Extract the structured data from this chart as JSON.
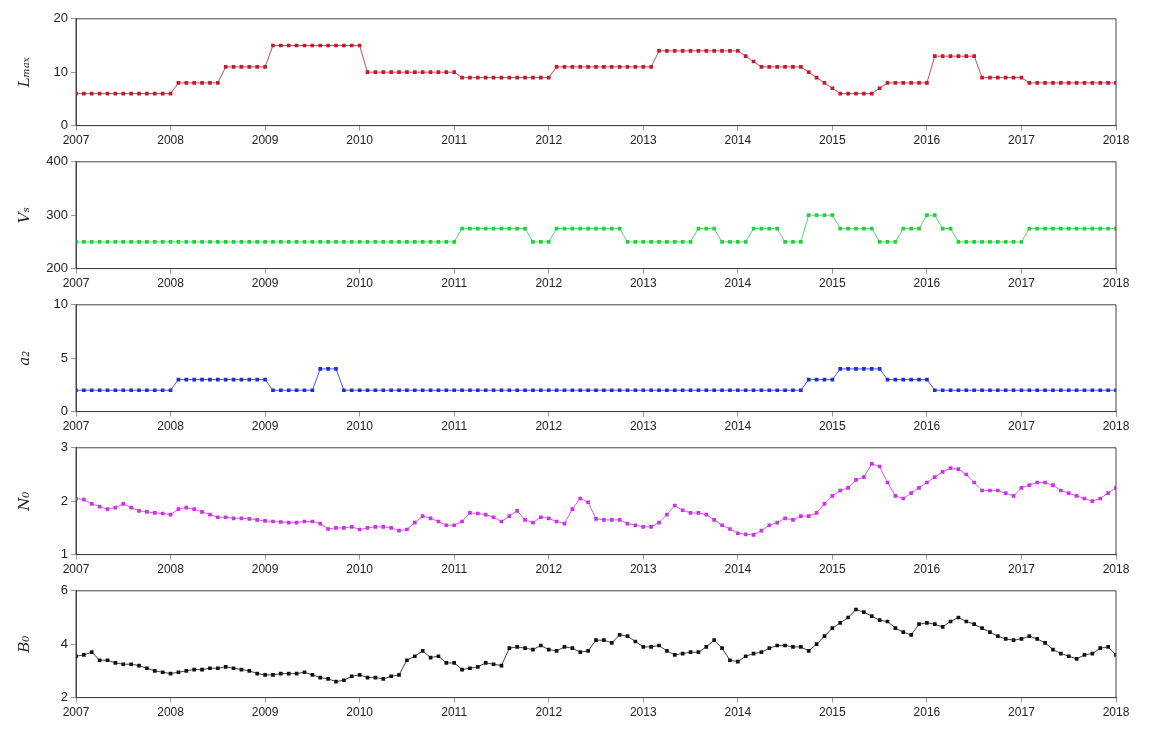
{
  "chart_data": [
    {
      "type": "line",
      "ylabel": "Lₘₐₓ",
      "marker": "square",
      "line_style": "solid",
      "grid": false,
      "xlim": [
        "2007",
        "2018"
      ],
      "xticks": [
        "2007",
        "2008",
        "2009",
        "2010",
        "2011",
        "2012",
        "2013",
        "2014",
        "2015",
        "2016",
        "2017",
        "2018"
      ],
      "ylim": [
        0,
        20
      ],
      "yticks": [
        0,
        10,
        20
      ],
      "x": [
        "2007-01",
        "2007-02",
        "2007-03",
        "2007-04",
        "2007-05",
        "2007-06",
        "2007-07",
        "2007-08",
        "2007-09",
        "2007-10",
        "2007-11",
        "2007-12",
        "2008-01",
        "2008-02",
        "2008-03",
        "2008-04",
        "2008-05",
        "2008-06",
        "2008-07",
        "2008-08",
        "2008-09",
        "2008-10",
        "2008-11",
        "2008-12",
        "2009-01",
        "2009-02",
        "2009-03",
        "2009-04",
        "2009-05",
        "2009-06",
        "2009-07",
        "2009-08",
        "2009-09",
        "2009-10",
        "2009-11",
        "2009-12",
        "2010-01",
        "2010-02",
        "2010-03",
        "2010-04",
        "2010-05",
        "2010-06",
        "2010-07",
        "2010-08",
        "2010-09",
        "2010-10",
        "2010-11",
        "2010-12",
        "2011-01",
        "2011-02",
        "2011-03",
        "2011-04",
        "2011-05",
        "2011-06",
        "2011-07",
        "2011-08",
        "2011-09",
        "2011-10",
        "2011-11",
        "2011-12",
        "2012-01",
        "2012-02",
        "2012-03",
        "2012-04",
        "2012-05",
        "2012-06",
        "2012-07",
        "2012-08",
        "2012-09",
        "2012-10",
        "2012-11",
        "2012-12",
        "2013-01",
        "2013-02",
        "2013-03",
        "2013-04",
        "2013-05",
        "2013-06",
        "2013-07",
        "2013-08",
        "2013-09",
        "2013-10",
        "2013-11",
        "2013-12",
        "2014-01",
        "2014-02",
        "2014-03",
        "2014-04",
        "2014-05",
        "2014-06",
        "2014-07",
        "2014-08",
        "2014-09",
        "2014-10",
        "2014-11",
        "2014-12",
        "2015-01",
        "2015-02",
        "2015-03",
        "2015-04",
        "2015-05",
        "2015-06",
        "2015-07",
        "2015-08",
        "2015-09",
        "2015-10",
        "2015-11",
        "2015-12",
        "2016-01",
        "2016-02",
        "2016-03",
        "2016-04",
        "2016-05",
        "2016-06",
        "2016-07",
        "2016-08",
        "2016-09",
        "2016-10",
        "2016-11",
        "2016-12",
        "2017-01",
        "2017-02",
        "2017-03",
        "2017-04",
        "2017-05",
        "2017-06",
        "2017-07",
        "2017-08",
        "2017-09",
        "2017-10",
        "2017-11",
        "2017-12",
        "2018-01"
      ],
      "series": [
        {
          "color": "#c41a30",
          "values": [
            6,
            6,
            6,
            6,
            6,
            6,
            6,
            6,
            6,
            6,
            6,
            6,
            6,
            8,
            8,
            8,
            8,
            8,
            8,
            11,
            11,
            11,
            11,
            11,
            11,
            15,
            15,
            15,
            15,
            15,
            15,
            15,
            15,
            15,
            15,
            15,
            15,
            10,
            10,
            10,
            10,
            10,
            10,
            10,
            10,
            10,
            10,
            10,
            10,
            9,
            9,
            9,
            9,
            9,
            9,
            9,
            9,
            9,
            9,
            9,
            9,
            11,
            11,
            11,
            11,
            11,
            11,
            11,
            11,
            11,
            11,
            11,
            11,
            11,
            14,
            14,
            14,
            14,
            14,
            14,
            14,
            14,
            14,
            14,
            14,
            13,
            12,
            11,
            11,
            11,
            11,
            11,
            11,
            10,
            9,
            8,
            7,
            6,
            6,
            6,
            6,
            6,
            7,
            8,
            8,
            8,
            8,
            8,
            8,
            13,
            13,
            13,
            13,
            13,
            13,
            9,
            9,
            9,
            9,
            9,
            9,
            8,
            8,
            8,
            8,
            8,
            8,
            8,
            8,
            8,
            8,
            8,
            8
          ]
        }
      ]
    },
    {
      "type": "line",
      "ylabel": "Vₛ",
      "marker": "square",
      "line_style": "solid",
      "grid": false,
      "xlim": [
        "2007",
        "2018"
      ],
      "xticks": [
        "2007",
        "2008",
        "2009",
        "2010",
        "2011",
        "2012",
        "2013",
        "2014",
        "2015",
        "2016",
        "2017",
        "2018"
      ],
      "ylim": [
        200,
        400
      ],
      "yticks": [
        200,
        300,
        400
      ],
      "x": [
        "2007-01",
        "2007-02",
        "2007-03",
        "2007-04",
        "2007-05",
        "2007-06",
        "2007-07",
        "2007-08",
        "2007-09",
        "2007-10",
        "2007-11",
        "2007-12",
        "2008-01",
        "2008-02",
        "2008-03",
        "2008-04",
        "2008-05",
        "2008-06",
        "2008-07",
        "2008-08",
        "2008-09",
        "2008-10",
        "2008-11",
        "2008-12",
        "2009-01",
        "2009-02",
        "2009-03",
        "2009-04",
        "2009-05",
        "2009-06",
        "2009-07",
        "2009-08",
        "2009-09",
        "2009-10",
        "2009-11",
        "2009-12",
        "2010-01",
        "2010-02",
        "2010-03",
        "2010-04",
        "2010-05",
        "2010-06",
        "2010-07",
        "2010-08",
        "2010-09",
        "2010-10",
        "2010-11",
        "2010-12",
        "2011-01",
        "2011-02",
        "2011-03",
        "2011-04",
        "2011-05",
        "2011-06",
        "2011-07",
        "2011-08",
        "2011-09",
        "2011-10",
        "2011-11",
        "2011-12",
        "2012-01",
        "2012-02",
        "2012-03",
        "2012-04",
        "2012-05",
        "2012-06",
        "2012-07",
        "2012-08",
        "2012-09",
        "2012-10",
        "2012-11",
        "2012-12",
        "2013-01",
        "2013-02",
        "2013-03",
        "2013-04",
        "2013-05",
        "2013-06",
        "2013-07",
        "2013-08",
        "2013-09",
        "2013-10",
        "2013-11",
        "2013-12",
        "2014-01",
        "2014-02",
        "2014-03",
        "2014-04",
        "2014-05",
        "2014-06",
        "2014-07",
        "2014-08",
        "2014-09",
        "2014-10",
        "2014-11",
        "2014-12",
        "2015-01",
        "2015-02",
        "2015-03",
        "2015-04",
        "2015-05",
        "2015-06",
        "2015-07",
        "2015-08",
        "2015-09",
        "2015-10",
        "2015-11",
        "2015-12",
        "2016-01",
        "2016-02",
        "2016-03",
        "2016-04",
        "2016-05",
        "2016-06",
        "2016-07",
        "2016-08",
        "2016-09",
        "2016-10",
        "2016-11",
        "2016-12",
        "2017-01",
        "2017-02",
        "2017-03",
        "2017-04",
        "2017-05",
        "2017-06",
        "2017-07",
        "2017-08",
        "2017-09",
        "2017-10",
        "2017-11",
        "2017-12",
        "2018-01"
      ],
      "series": [
        {
          "color": "#22d040",
          "values": [
            250,
            250,
            250,
            250,
            250,
            250,
            250,
            250,
            250,
            250,
            250,
            250,
            250,
            250,
            250,
            250,
            250,
            250,
            250,
            250,
            250,
            250,
            250,
            250,
            250,
            250,
            250,
            250,
            250,
            250,
            250,
            250,
            250,
            250,
            250,
            250,
            250,
            250,
            250,
            250,
            250,
            250,
            250,
            250,
            250,
            250,
            250,
            250,
            250,
            275,
            275,
            275,
            275,
            275,
            275,
            275,
            275,
            275,
            250,
            250,
            250,
            275,
            275,
            275,
            275,
            275,
            275,
            275,
            275,
            275,
            250,
            250,
            250,
            250,
            250,
            250,
            250,
            250,
            250,
            275,
            275,
            275,
            250,
            250,
            250,
            250,
            275,
            275,
            275,
            275,
            250,
            250,
            250,
            300,
            300,
            300,
            300,
            275,
            275,
            275,
            275,
            275,
            250,
            250,
            250,
            275,
            275,
            275,
            300,
            300,
            275,
            275,
            250,
            250,
            250,
            250,
            250,
            250,
            250,
            250,
            250,
            275,
            275,
            275,
            275,
            275,
            275,
            275,
            275,
            275,
            275,
            275,
            275
          ]
        }
      ]
    },
    {
      "type": "line",
      "ylabel": "a₂",
      "marker": "square",
      "line_style": "solid",
      "grid": false,
      "xlim": [
        "2007",
        "2018"
      ],
      "xticks": [
        "2007",
        "2008",
        "2009",
        "2010",
        "2011",
        "2012",
        "2013",
        "2014",
        "2015",
        "2016",
        "2017",
        "2018"
      ],
      "ylim": [
        0,
        10
      ],
      "yticks": [
        0,
        5,
        10
      ],
      "x": [
        "2007-01",
        "2007-02",
        "2007-03",
        "2007-04",
        "2007-05",
        "2007-06",
        "2007-07",
        "2007-08",
        "2007-09",
        "2007-10",
        "2007-11",
        "2007-12",
        "2008-01",
        "2008-02",
        "2008-03",
        "2008-04",
        "2008-05",
        "2008-06",
        "2008-07",
        "2008-08",
        "2008-09",
        "2008-10",
        "2008-11",
        "2008-12",
        "2009-01",
        "2009-02",
        "2009-03",
        "2009-04",
        "2009-05",
        "2009-06",
        "2009-07",
        "2009-08",
        "2009-09",
        "2009-10",
        "2009-11",
        "2009-12",
        "2010-01",
        "2010-02",
        "2010-03",
        "2010-04",
        "2010-05",
        "2010-06",
        "2010-07",
        "2010-08",
        "2010-09",
        "2010-10",
        "2010-11",
        "2010-12",
        "2011-01",
        "2011-02",
        "2011-03",
        "2011-04",
        "2011-05",
        "2011-06",
        "2011-07",
        "2011-08",
        "2011-09",
        "2011-10",
        "2011-11",
        "2011-12",
        "2012-01",
        "2012-02",
        "2012-03",
        "2012-04",
        "2012-05",
        "2012-06",
        "2012-07",
        "2012-08",
        "2012-09",
        "2012-10",
        "2012-11",
        "2012-12",
        "2013-01",
        "2013-02",
        "2013-03",
        "2013-04",
        "2013-05",
        "2013-06",
        "2013-07",
        "2013-08",
        "2013-09",
        "2013-10",
        "2013-11",
        "2013-12",
        "2014-01",
        "2014-02",
        "2014-03",
        "2014-04",
        "2014-05",
        "2014-06",
        "2014-07",
        "2014-08",
        "2014-09",
        "2014-10",
        "2014-11",
        "2014-12",
        "2015-01",
        "2015-02",
        "2015-03",
        "2015-04",
        "2015-05",
        "2015-06",
        "2015-07",
        "2015-08",
        "2015-09",
        "2015-10",
        "2015-11",
        "2015-12",
        "2016-01",
        "2016-02",
        "2016-03",
        "2016-04",
        "2016-05",
        "2016-06",
        "2016-07",
        "2016-08",
        "2016-09",
        "2016-10",
        "2016-11",
        "2016-12",
        "2017-01",
        "2017-02",
        "2017-03",
        "2017-04",
        "2017-05",
        "2017-06",
        "2017-07",
        "2017-08",
        "2017-09",
        "2017-10",
        "2017-11",
        "2017-12",
        "2018-01"
      ],
      "series": [
        {
          "color": "#1a2ee0",
          "values": [
            2,
            2,
            2,
            2,
            2,
            2,
            2,
            2,
            2,
            2,
            2,
            2,
            2,
            3,
            3,
            3,
            3,
            3,
            3,
            3,
            3,
            3,
            3,
            3,
            3,
            2,
            2,
            2,
            2,
            2,
            2,
            4,
            4,
            4,
            2,
            2,
            2,
            2,
            2,
            2,
            2,
            2,
            2,
            2,
            2,
            2,
            2,
            2,
            2,
            2,
            2,
            2,
            2,
            2,
            2,
            2,
            2,
            2,
            2,
            2,
            2,
            2,
            2,
            2,
            2,
            2,
            2,
            2,
            2,
            2,
            2,
            2,
            2,
            2,
            2,
            2,
            2,
            2,
            2,
            2,
            2,
            2,
            2,
            2,
            2,
            2,
            2,
            2,
            2,
            2,
            2,
            2,
            2,
            3,
            3,
            3,
            3,
            4,
            4,
            4,
            4,
            4,
            4,
            3,
            3,
            3,
            3,
            3,
            3,
            2,
            2,
            2,
            2,
            2,
            2,
            2,
            2,
            2,
            2,
            2,
            2,
            2,
            2,
            2,
            2,
            2,
            2,
            2,
            2,
            2,
            2,
            2,
            2
          ]
        }
      ]
    },
    {
      "type": "line",
      "ylabel": "N₀",
      "marker": "square",
      "line_style": "solid",
      "grid": false,
      "xlim": [
        "2007",
        "2018"
      ],
      "xticks": [
        "2007",
        "2008",
        "2009",
        "2010",
        "2011",
        "2012",
        "2013",
        "2014",
        "2015",
        "2016",
        "2017",
        "2018"
      ],
      "ylim": [
        1,
        3
      ],
      "yticks": [
        1,
        2,
        3
      ],
      "x": [
        "2007-01",
        "2007-02",
        "2007-03",
        "2007-04",
        "2007-05",
        "2007-06",
        "2007-07",
        "2007-08",
        "2007-09",
        "2007-10",
        "2007-11",
        "2007-12",
        "2008-01",
        "2008-02",
        "2008-03",
        "2008-04",
        "2008-05",
        "2008-06",
        "2008-07",
        "2008-08",
        "2008-09",
        "2008-10",
        "2008-11",
        "2008-12",
        "2009-01",
        "2009-02",
        "2009-03",
        "2009-04",
        "2009-05",
        "2009-06",
        "2009-07",
        "2009-08",
        "2009-09",
        "2009-10",
        "2009-11",
        "2009-12",
        "2010-01",
        "2010-02",
        "2010-03",
        "2010-04",
        "2010-05",
        "2010-06",
        "2010-07",
        "2010-08",
        "2010-09",
        "2010-10",
        "2010-11",
        "2010-12",
        "2011-01",
        "2011-02",
        "2011-03",
        "2011-04",
        "2011-05",
        "2011-06",
        "2011-07",
        "2011-08",
        "2011-09",
        "2011-10",
        "2011-11",
        "2011-12",
        "2012-01",
        "2012-02",
        "2012-03",
        "2012-04",
        "2012-05",
        "2012-06",
        "2012-07",
        "2012-08",
        "2012-09",
        "2012-10",
        "2012-11",
        "2012-12",
        "2013-01",
        "2013-02",
        "2013-03",
        "2013-04",
        "2013-05",
        "2013-06",
        "2013-07",
        "2013-08",
        "2013-09",
        "2013-10",
        "2013-11",
        "2013-12",
        "2014-01",
        "2014-02",
        "2014-03",
        "2014-04",
        "2014-05",
        "2014-06",
        "2014-07",
        "2014-08",
        "2014-09",
        "2014-10",
        "2014-11",
        "2014-12",
        "2015-01",
        "2015-02",
        "2015-03",
        "2015-04",
        "2015-05",
        "2015-06",
        "2015-07",
        "2015-08",
        "2015-09",
        "2015-10",
        "2015-11",
        "2015-12",
        "2016-01",
        "2016-02",
        "2016-03",
        "2016-04",
        "2016-05",
        "2016-06",
        "2016-07",
        "2016-08",
        "2016-09",
        "2016-10",
        "2016-11",
        "2016-12",
        "2017-01",
        "2017-02",
        "2017-03",
        "2017-04",
        "2017-05",
        "2017-06",
        "2017-07",
        "2017-08",
        "2017-09",
        "2017-10",
        "2017-11",
        "2017-12",
        "2018-01"
      ],
      "series": [
        {
          "color": "#cc33e6",
          "values": [
            2.05,
            2.03,
            1.95,
            1.9,
            1.85,
            1.88,
            1.95,
            1.88,
            1.82,
            1.8,
            1.78,
            1.77,
            1.75,
            1.85,
            1.88,
            1.85,
            1.8,
            1.75,
            1.7,
            1.7,
            1.68,
            1.68,
            1.67,
            1.65,
            1.63,
            1.62,
            1.61,
            1.6,
            1.6,
            1.62,
            1.62,
            1.58,
            1.48,
            1.5,
            1.5,
            1.52,
            1.47,
            1.5,
            1.52,
            1.52,
            1.5,
            1.45,
            1.47,
            1.6,
            1.72,
            1.68,
            1.62,
            1.55,
            1.55,
            1.62,
            1.78,
            1.77,
            1.75,
            1.7,
            1.62,
            1.72,
            1.82,
            1.65,
            1.6,
            1.7,
            1.68,
            1.62,
            1.58,
            1.85,
            2.05,
            1.98,
            1.67,
            1.65,
            1.65,
            1.65,
            1.58,
            1.55,
            1.52,
            1.52,
            1.6,
            1.75,
            1.92,
            1.83,
            1.78,
            1.78,
            1.75,
            1.65,
            1.55,
            1.48,
            1.4,
            1.38,
            1.37,
            1.45,
            1.55,
            1.6,
            1.68,
            1.65,
            1.72,
            1.72,
            1.78,
            1.95,
            2.1,
            2.2,
            2.25,
            2.4,
            2.45,
            2.7,
            2.65,
            2.35,
            2.1,
            2.05,
            2.15,
            2.25,
            2.35,
            2.45,
            2.55,
            2.62,
            2.6,
            2.5,
            2.35,
            2.2,
            2.2,
            2.2,
            2.15,
            2.1,
            2.25,
            2.3,
            2.35,
            2.35,
            2.3,
            2.2,
            2.15,
            2.1,
            2.05,
            2.0,
            2.05,
            2.15,
            2.25
          ]
        }
      ]
    },
    {
      "type": "line",
      "ylabel": "B₀",
      "marker": "square",
      "line_style": "solid",
      "grid": false,
      "xlim": [
        "2007",
        "2018"
      ],
      "xticks": [
        "2007",
        "2008",
        "2009",
        "2010",
        "2011",
        "2012",
        "2013",
        "2014",
        "2015",
        "2016",
        "2017",
        "2018"
      ],
      "ylim": [
        2,
        6
      ],
      "yticks": [
        2,
        4,
        6
      ],
      "x": [
        "2007-01",
        "2007-02",
        "2007-03",
        "2007-04",
        "2007-05",
        "2007-06",
        "2007-07",
        "2007-08",
        "2007-09",
        "2007-10",
        "2007-11",
        "2007-12",
        "2008-01",
        "2008-02",
        "2008-03",
        "2008-04",
        "2008-05",
        "2008-06",
        "2008-07",
        "2008-08",
        "2008-09",
        "2008-10",
        "2008-11",
        "2008-12",
        "2009-01",
        "2009-02",
        "2009-03",
        "2009-04",
        "2009-05",
        "2009-06",
        "2009-07",
        "2009-08",
        "2009-09",
        "2009-10",
        "2009-11",
        "2009-12",
        "2010-01",
        "2010-02",
        "2010-03",
        "2010-04",
        "2010-05",
        "2010-06",
        "2010-07",
        "2010-08",
        "2010-09",
        "2010-10",
        "2010-11",
        "2010-12",
        "2011-01",
        "2011-02",
        "2011-03",
        "2011-04",
        "2011-05",
        "2011-06",
        "2011-07",
        "2011-08",
        "2011-09",
        "2011-10",
        "2011-11",
        "2011-12",
        "2012-01",
        "2012-02",
        "2012-03",
        "2012-04",
        "2012-05",
        "2012-06",
        "2012-07",
        "2012-08",
        "2012-09",
        "2012-10",
        "2012-11",
        "2012-12",
        "2013-01",
        "2013-02",
        "2013-03",
        "2013-04",
        "2013-05",
        "2013-06",
        "2013-07",
        "2013-08",
        "2013-09",
        "2013-10",
        "2013-11",
        "2013-12",
        "2014-01",
        "2014-02",
        "2014-03",
        "2014-04",
        "2014-05",
        "2014-06",
        "2014-07",
        "2014-08",
        "2014-09",
        "2014-10",
        "2014-11",
        "2014-12",
        "2015-01",
        "2015-02",
        "2015-03",
        "2015-04",
        "2015-05",
        "2015-06",
        "2015-07",
        "2015-08",
        "2015-09",
        "2015-10",
        "2015-11",
        "2015-12",
        "2016-01",
        "2016-02",
        "2016-03",
        "2016-04",
        "2016-05",
        "2016-06",
        "2016-07",
        "2016-08",
        "2016-09",
        "2016-10",
        "2016-11",
        "2016-12",
        "2017-01",
        "2017-02",
        "2017-03",
        "2017-04",
        "2017-05",
        "2017-06",
        "2017-07",
        "2017-08",
        "2017-09",
        "2017-10",
        "2017-11",
        "2017-12",
        "2018-01"
      ],
      "series": [
        {
          "color": "#111111",
          "values": [
            3.55,
            3.6,
            3.7,
            3.4,
            3.4,
            3.3,
            3.25,
            3.25,
            3.2,
            3.1,
            3.0,
            2.95,
            2.9,
            2.95,
            3.0,
            3.05,
            3.05,
            3.1,
            3.1,
            3.15,
            3.1,
            3.05,
            3.0,
            2.9,
            2.85,
            2.85,
            2.9,
            2.9,
            2.9,
            2.95,
            2.85,
            2.75,
            2.7,
            2.6,
            2.65,
            2.8,
            2.85,
            2.75,
            2.75,
            2.7,
            2.8,
            2.85,
            3.4,
            3.55,
            3.75,
            3.5,
            3.55,
            3.3,
            3.3,
            3.05,
            3.1,
            3.15,
            3.3,
            3.25,
            3.2,
            3.85,
            3.9,
            3.85,
            3.8,
            3.95,
            3.8,
            3.75,
            3.9,
            3.85,
            3.7,
            3.75,
            4.15,
            4.15,
            4.05,
            4.35,
            4.3,
            4.1,
            3.9,
            3.9,
            3.95,
            3.75,
            3.6,
            3.65,
            3.7,
            3.7,
            3.9,
            4.15,
            3.85,
            3.4,
            3.35,
            3.55,
            3.65,
            3.7,
            3.85,
            3.95,
            3.95,
            3.9,
            3.9,
            3.75,
            4.0,
            4.3,
            4.6,
            4.8,
            5.0,
            5.3,
            5.2,
            5.05,
            4.9,
            4.85,
            4.6,
            4.45,
            4.35,
            4.75,
            4.8,
            4.75,
            4.65,
            4.85,
            5.0,
            4.85,
            4.75,
            4.6,
            4.45,
            4.3,
            4.2,
            4.15,
            4.2,
            4.3,
            4.2,
            4.05,
            3.8,
            3.65,
            3.55,
            3.45,
            3.6,
            3.65,
            3.85,
            3.9,
            3.6
          ]
        }
      ]
    }
  ]
}
